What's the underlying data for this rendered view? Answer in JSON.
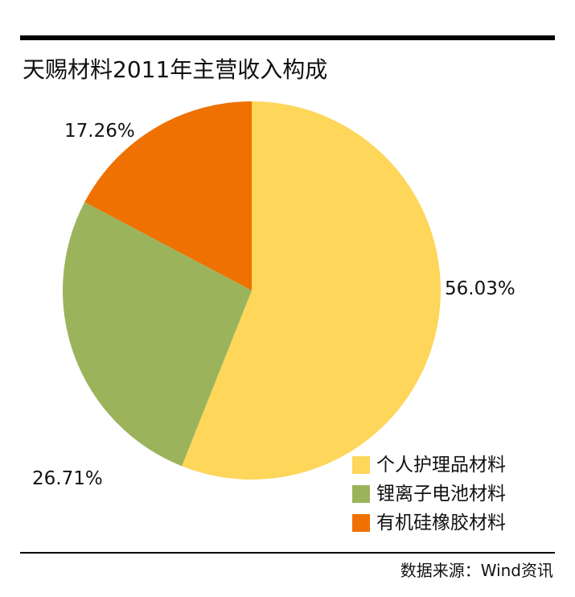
{
  "chart_data": {
    "type": "pie",
    "title": "天赐材料2011年主营收入构成",
    "slices": [
      {
        "name": "个人护理品材料",
        "value": 56.03,
        "label": "56.03%",
        "color": "#FDD65A"
      },
      {
        "name": "锂离子电池材料",
        "value": 26.71,
        "label": "26.71%",
        "color": "#9BB45C"
      },
      {
        "name": "有机硅橡胶材料",
        "value": 17.26,
        "label": "17.26%",
        "color": "#EF7101"
      }
    ],
    "legend_position": "bottom-right",
    "start_angle": "12 o'clock",
    "direction": "clockwise"
  },
  "source": "数据来源：Wind资讯"
}
